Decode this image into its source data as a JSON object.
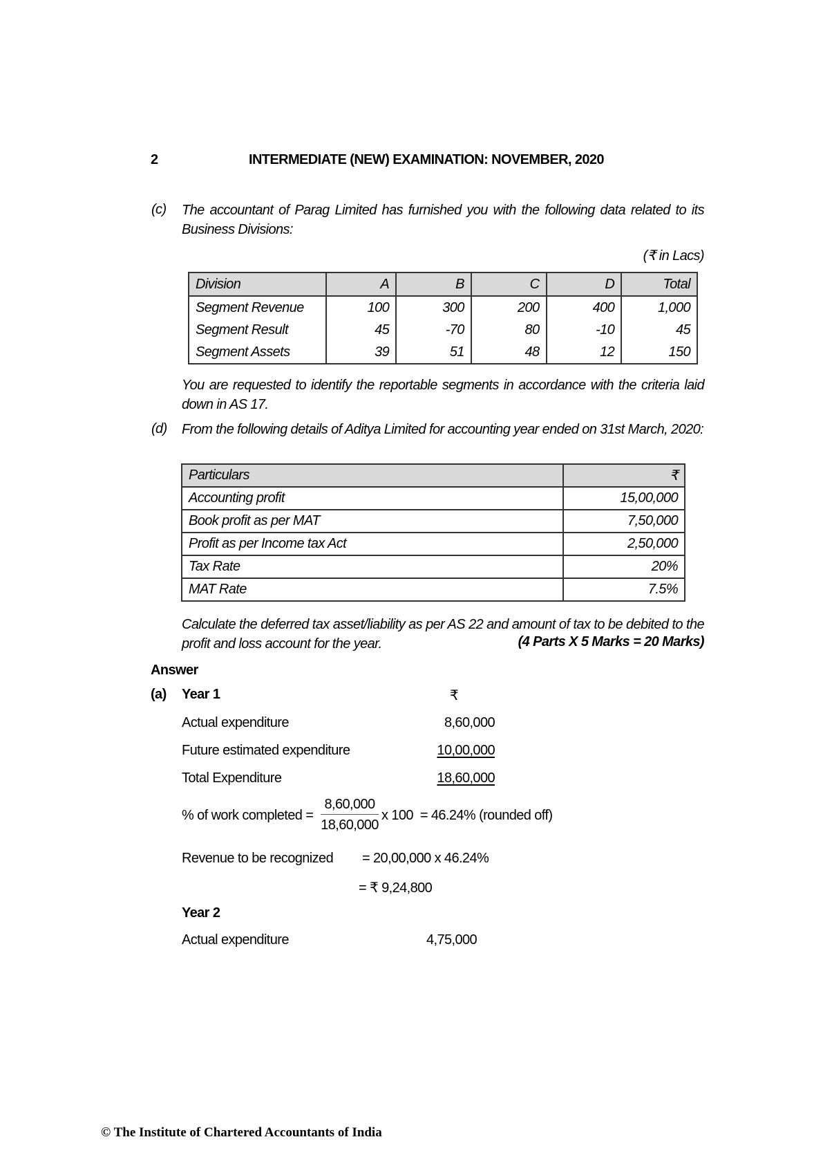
{
  "header": {
    "page_number": "2",
    "title": "INTERMEDIATE (NEW) EXAMINATION: NOVEMBER, 2020"
  },
  "part_c": {
    "label": "(c)",
    "text": "The accountant of Parag Limited has furnished you with the following data related to its Business Divisions:",
    "unit": "(₹ in Lacs)",
    "table": {
      "headers": [
        "Division",
        "A",
        "B",
        "C",
        "D",
        "Total"
      ],
      "rows": [
        [
          "Segment Revenue",
          "100",
          "300",
          "200",
          "400",
          "1,000"
        ],
        [
          "Segment Result",
          "45",
          "-70",
          "80",
          "-10",
          "45"
        ],
        [
          "Segment Assets",
          "39",
          "51",
          "48",
          "12",
          "150"
        ]
      ]
    },
    "instruction": "You are requested to identify the reportable segments in accordance with the criteria laid down in AS 17."
  },
  "part_d": {
    "label": "(d)",
    "text": "From the following details of Aditya Limited for accounting year ended on 31st March, 2020:",
    "table": {
      "headers": [
        "Particulars",
        "₹"
      ],
      "rows": [
        [
          "Accounting profit",
          "15,00,000"
        ],
        [
          "Book profit as per MAT",
          "7,50,000"
        ],
        [
          "Profit as per Income tax Act",
          "2,50,000"
        ],
        [
          "Tax Rate",
          "20%"
        ],
        [
          "MAT Rate",
          "7.5%"
        ]
      ]
    },
    "instruction": "Calculate the deferred tax asset/liability as per AS 22 and amount of tax to be debited to the profit and loss account for the year.",
    "marks": "(4 Parts X 5 Marks = 20 Marks)"
  },
  "answer": {
    "heading": "Answer",
    "label": "(a)",
    "year1": {
      "title": "Year 1",
      "currency": "₹",
      "actual_label": "Actual expenditure",
      "actual_value": "8,60,000",
      "future_label": "Future estimated expenditure",
      "future_value": "10,00,000",
      "total_label": "Total Expenditure",
      "total_value": "18,60,000",
      "pct_label": "% of work completed =",
      "numerator": "8,60,000",
      "denominator": "18,60,000",
      "pct_rest": "x 100  = 46.24% (rounded off)",
      "rev_label": "Revenue to be recognized",
      "rev_calc": "= 20,00,000 x 46.24%",
      "rev_value": "= ₹ 9,24,800"
    },
    "year2": {
      "title": "Year 2",
      "actual_label": "Actual expenditure",
      "actual_value": "4,75,000"
    }
  },
  "footer": {
    "text": "© The Institute of Chartered Accountants of India"
  }
}
